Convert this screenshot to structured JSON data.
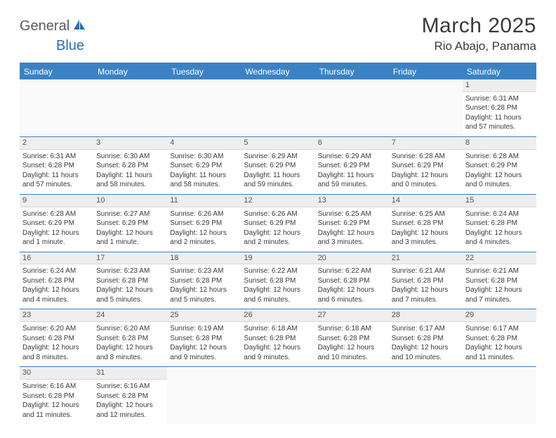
{
  "logo": {
    "text1": "General",
    "text2": "Blue"
  },
  "title": "March 2025",
  "location": "Rio Abajo, Panama",
  "columns": [
    "Sunday",
    "Monday",
    "Tuesday",
    "Wednesday",
    "Thursday",
    "Friday",
    "Saturday"
  ],
  "colors": {
    "header_bg": "#3b82c4",
    "header_text": "#ffffff",
    "daynum_bg": "#eeeeee",
    "text": "#3a3a3a",
    "border": "#3b82c4"
  },
  "typography": {
    "title_fontsize": 30,
    "location_fontsize": 17,
    "header_fontsize": 12,
    "cell_fontsize": 10
  },
  "layout": {
    "weeks": 6,
    "cols": 7,
    "first_day_col": 6
  },
  "days": [
    {
      "n": 1,
      "sunrise": "6:31 AM",
      "sunset": "6:28 PM",
      "daylight": "11 hours and 57 minutes."
    },
    {
      "n": 2,
      "sunrise": "6:31 AM",
      "sunset": "6:28 PM",
      "daylight": "11 hours and 57 minutes."
    },
    {
      "n": 3,
      "sunrise": "6:30 AM",
      "sunset": "6:28 PM",
      "daylight": "11 hours and 58 minutes."
    },
    {
      "n": 4,
      "sunrise": "6:30 AM",
      "sunset": "6:29 PM",
      "daylight": "11 hours and 58 minutes."
    },
    {
      "n": 5,
      "sunrise": "6:29 AM",
      "sunset": "6:29 PM",
      "daylight": "11 hours and 59 minutes."
    },
    {
      "n": 6,
      "sunrise": "6:29 AM",
      "sunset": "6:29 PM",
      "daylight": "11 hours and 59 minutes."
    },
    {
      "n": 7,
      "sunrise": "6:28 AM",
      "sunset": "6:29 PM",
      "daylight": "12 hours and 0 minutes."
    },
    {
      "n": 8,
      "sunrise": "6:28 AM",
      "sunset": "6:29 PM",
      "daylight": "12 hours and 0 minutes."
    },
    {
      "n": 9,
      "sunrise": "6:28 AM",
      "sunset": "6:29 PM",
      "daylight": "12 hours and 1 minute."
    },
    {
      "n": 10,
      "sunrise": "6:27 AM",
      "sunset": "6:29 PM",
      "daylight": "12 hours and 1 minute."
    },
    {
      "n": 11,
      "sunrise": "6:26 AM",
      "sunset": "6:29 PM",
      "daylight": "12 hours and 2 minutes."
    },
    {
      "n": 12,
      "sunrise": "6:26 AM",
      "sunset": "6:29 PM",
      "daylight": "12 hours and 2 minutes."
    },
    {
      "n": 13,
      "sunrise": "6:25 AM",
      "sunset": "6:29 PM",
      "daylight": "12 hours and 3 minutes."
    },
    {
      "n": 14,
      "sunrise": "6:25 AM",
      "sunset": "6:28 PM",
      "daylight": "12 hours and 3 minutes."
    },
    {
      "n": 15,
      "sunrise": "6:24 AM",
      "sunset": "6:28 PM",
      "daylight": "12 hours and 4 minutes."
    },
    {
      "n": 16,
      "sunrise": "6:24 AM",
      "sunset": "6:28 PM",
      "daylight": "12 hours and 4 minutes."
    },
    {
      "n": 17,
      "sunrise": "6:23 AM",
      "sunset": "6:28 PM",
      "daylight": "12 hours and 5 minutes."
    },
    {
      "n": 18,
      "sunrise": "6:23 AM",
      "sunset": "6:28 PM",
      "daylight": "12 hours and 5 minutes."
    },
    {
      "n": 19,
      "sunrise": "6:22 AM",
      "sunset": "6:28 PM",
      "daylight": "12 hours and 6 minutes."
    },
    {
      "n": 20,
      "sunrise": "6:22 AM",
      "sunset": "6:28 PM",
      "daylight": "12 hours and 6 minutes."
    },
    {
      "n": 21,
      "sunrise": "6:21 AM",
      "sunset": "6:28 PM",
      "daylight": "12 hours and 7 minutes."
    },
    {
      "n": 22,
      "sunrise": "6:21 AM",
      "sunset": "6:28 PM",
      "daylight": "12 hours and 7 minutes."
    },
    {
      "n": 23,
      "sunrise": "6:20 AM",
      "sunset": "6:28 PM",
      "daylight": "12 hours and 8 minutes."
    },
    {
      "n": 24,
      "sunrise": "6:20 AM",
      "sunset": "6:28 PM",
      "daylight": "12 hours and 8 minutes."
    },
    {
      "n": 25,
      "sunrise": "6:19 AM",
      "sunset": "6:28 PM",
      "daylight": "12 hours and 9 minutes."
    },
    {
      "n": 26,
      "sunrise": "6:18 AM",
      "sunset": "6:28 PM",
      "daylight": "12 hours and 9 minutes."
    },
    {
      "n": 27,
      "sunrise": "6:18 AM",
      "sunset": "6:28 PM",
      "daylight": "12 hours and 10 minutes."
    },
    {
      "n": 28,
      "sunrise": "6:17 AM",
      "sunset": "6:28 PM",
      "daylight": "12 hours and 10 minutes."
    },
    {
      "n": 29,
      "sunrise": "6:17 AM",
      "sunset": "6:28 PM",
      "daylight": "12 hours and 11 minutes."
    },
    {
      "n": 30,
      "sunrise": "6:16 AM",
      "sunset": "6:28 PM",
      "daylight": "12 hours and 11 minutes."
    },
    {
      "n": 31,
      "sunrise": "6:16 AM",
      "sunset": "6:28 PM",
      "daylight": "12 hours and 12 minutes."
    }
  ],
  "labels": {
    "sunrise": "Sunrise:",
    "sunset": "Sunset:",
    "daylight": "Daylight:"
  }
}
